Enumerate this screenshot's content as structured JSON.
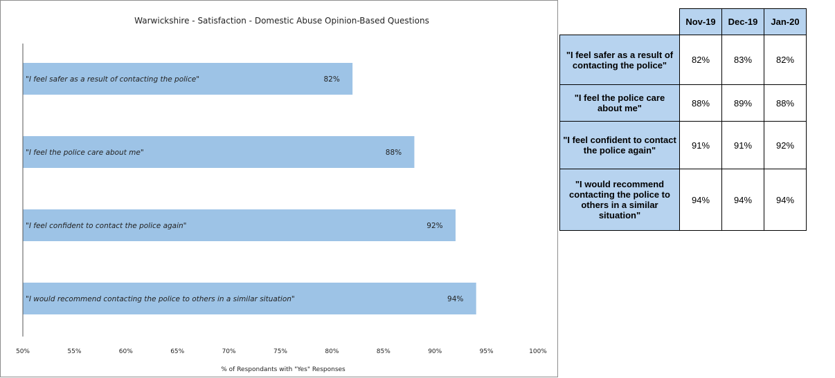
{
  "chart_data": {
    "type": "bar",
    "orientation": "horizontal",
    "title": "Warwickshire - Satisfaction - Domestic Abuse Opinion-Based Questions",
    "categories": [
      "\"I feel safer as a result of contacting the police\"",
      "\"I feel the police care about me\"",
      "\"I feel confident to contact the police again\"",
      "\"I would recommend contacting the police to others in a similar situation\""
    ],
    "values": [
      82,
      88,
      92,
      94
    ],
    "value_labels": [
      "82%",
      "88%",
      "92%",
      "94%"
    ],
    "xlabel": "% of Respondants with \"Yes\" Responses",
    "ylabel": "",
    "xlim": [
      50,
      100
    ],
    "xticks": [
      "50%",
      "55%",
      "60%",
      "65%",
      "70%",
      "75%",
      "80%",
      "85%",
      "90%",
      "95%",
      "100%"
    ],
    "grid": false,
    "bar_color": "#9dc3e6"
  },
  "table": {
    "months": [
      "Nov-19",
      "Dec-19",
      "Jan-20"
    ],
    "rows": [
      {
        "label": "\"I feel safer as a result of contacting the police\"",
        "values": [
          "82%",
          "83%",
          "82%"
        ]
      },
      {
        "label": "\"I feel the police care about me\"",
        "values": [
          "88%",
          "89%",
          "88%"
        ]
      },
      {
        "label": "\"I feel confident to contact the police again\"",
        "values": [
          "91%",
          "91%",
          "92%"
        ]
      },
      {
        "label": "\"I would recommend contacting the police to others in a similar situation\"",
        "values": [
          "94%",
          "94%",
          "94%"
        ]
      }
    ],
    "header_color": "#b7d3ef"
  }
}
